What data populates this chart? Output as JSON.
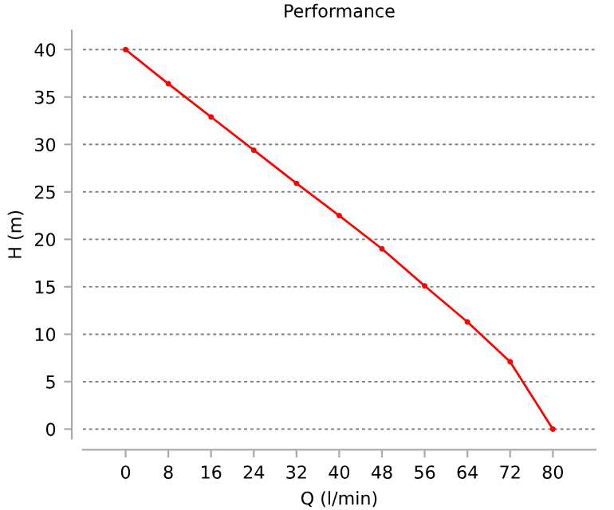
{
  "chart_data": {
    "type": "line",
    "title": "Performance",
    "xlabel": "Q (l/min)",
    "ylabel": "H (m)",
    "x": [
      0,
      8,
      16,
      24,
      32,
      40,
      48,
      56,
      64,
      72,
      80
    ],
    "series": [
      {
        "color": "#ff0000",
        "values": [
          40,
          36.4,
          32.9,
          29.4,
          25.9,
          22.5,
          19.0,
          15.1,
          11.3,
          7.1,
          0
        ]
      }
    ],
    "xlim": [
      -8,
      88
    ],
    "ylim": [
      -1,
      42
    ],
    "xticks": [
      0,
      8,
      16,
      24,
      32,
      40,
      48,
      56,
      64,
      72,
      80
    ],
    "yticks": [
      0,
      5,
      10,
      15,
      20,
      25,
      30,
      35,
      40
    ],
    "grid": "y",
    "legend": false,
    "marker": "circle",
    "line_style": "solid"
  }
}
